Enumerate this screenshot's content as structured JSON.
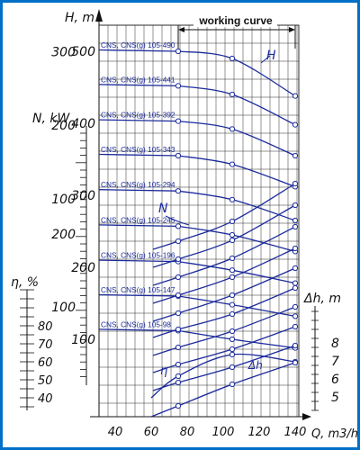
{
  "chart_data": {
    "type": "line",
    "title": "",
    "x_axis": {
      "label": "Q, m3/h",
      "ticks": [
        40,
        60,
        80,
        100,
        120,
        140
      ],
      "range": [
        30,
        150
      ]
    },
    "y_axes": {
      "head": {
        "label": "H, m",
        "ticks": [
          100,
          200,
          300,
          400,
          500
        ],
        "range": [
          0,
          560
        ]
      },
      "power": {
        "label": "N, kW",
        "ticks": [
          100,
          200,
          300
        ]
      },
      "efficiency": {
        "label": "η, %",
        "ticks": [
          40,
          50,
          60,
          70,
          80
        ]
      },
      "npsh": {
        "label": "Δh, m",
        "ticks": [
          5,
          6,
          7,
          8
        ]
      }
    },
    "working_curve": {
      "label": "working curve",
      "q_range": [
        75,
        140
      ]
    },
    "curve_labels": {
      "head": "H",
      "power": "N",
      "efficiency": "η",
      "npsh": "Δh"
    },
    "head_series": [
      {
        "name": "CNS, CNS(g) 105-490",
        "q": [
          75,
          105,
          140
        ],
        "h": [
          500,
          490,
          438
        ]
      },
      {
        "name": "CNS, CNS(g) 105-441",
        "q": [
          75,
          105,
          140
        ],
        "h": [
          452,
          440,
          398
        ]
      },
      {
        "name": "CNS, CNS(g) 105-392",
        "q": [
          75,
          105,
          140
        ],
        "h": [
          403,
          392,
          355
        ]
      },
      {
        "name": "CNS, CNS(g) 105-343",
        "q": [
          75,
          105,
          140
        ],
        "h": [
          355,
          343,
          312
        ]
      },
      {
        "name": "CNS, CNS(g) 105-294",
        "q": [
          75,
          105,
          140
        ],
        "h": [
          306,
          294,
          265
        ]
      },
      {
        "name": "CNS, CNS(g) 105-245",
        "q": [
          75,
          105,
          140
        ],
        "h": [
          257,
          245,
          222
        ]
      },
      {
        "name": "CNS, CNS(g) 105-196",
        "q": [
          75,
          105,
          140
        ],
        "h": [
          208,
          196,
          178
        ]
      },
      {
        "name": "CNS, CNS(g) 105-147",
        "q": [
          75,
          105,
          140
        ],
        "h": [
          160,
          148,
          132
        ]
      },
      {
        "name": "CNS, CNS(g) 105-98",
        "q": [
          75,
          105,
          140
        ],
        "h": [
          112,
          100,
          88
        ]
      }
    ],
    "power_series_svg_y": [
      [
        268,
        246,
        204
      ],
      [
        288,
        267,
        228
      ],
      [
        308,
        287,
        252
      ],
      [
        328,
        308,
        276
      ],
      [
        348,
        328,
        298
      ],
      [
        366,
        349,
        320
      ],
      [
        386,
        368,
        341
      ],
      [
        405,
        388,
        363
      ],
      [
        425,
        408,
        384
      ]
    ],
    "efficiency_series": {
      "q": [
        60,
        75,
        105,
        140
      ],
      "eta": [
        40,
        52,
        64,
        60
      ]
    },
    "npsh_series": {
      "q": [
        60,
        75,
        105,
        140
      ],
      "dh": [
        3.9,
        4.5,
        5.7,
        6.9
      ]
    },
    "grid": true,
    "colors": {
      "curves": "#1c2b9c",
      "grid": "#2b2b2b",
      "frame": "#0070c8",
      "axis": "#111111"
    }
  }
}
